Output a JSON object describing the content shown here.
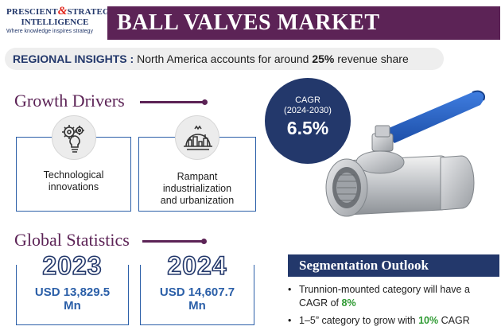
{
  "logo": {
    "line1_a": "PRESCIENT",
    "amp": "&",
    "line1_b": "STRATEGIC",
    "line2": "INTELLIGENCE",
    "tagline": "Where knowledge inspires strategy"
  },
  "title": "BALL VALVES MARKET",
  "regional": {
    "label": "REGIONAL INSIGHTS :",
    "text": "North America accounts for around",
    "percent": "25%",
    "suffix": "revenue share"
  },
  "growth_drivers": {
    "heading": "Growth Drivers",
    "items": [
      {
        "icon": "gears-lightbulb-icon",
        "label_line1": "Technological",
        "label_line2": "innovations"
      },
      {
        "icon": "industrial-city-icon",
        "label_line1": "Rampant",
        "label_line2": "industrialization",
        "label_line3": "and urbanization"
      }
    ]
  },
  "cagr": {
    "label": "CAGR",
    "period": "(2024-2030)",
    "value": "6.5%"
  },
  "global_statistics": {
    "heading": "Global Statistics",
    "items": [
      {
        "year": "2023",
        "value_line1": "USD 13,829.5",
        "value_line2": "Mn"
      },
      {
        "year": "2024",
        "value_line1": "USD 14,607.7",
        "value_line2": "Mn"
      }
    ]
  },
  "segmentation": {
    "heading": "Segmentation Outlook",
    "items": [
      {
        "bullet": "•",
        "text_a": "Trunnion-mounted category will have a CAGR of",
        "highlight": "8%",
        "text_b": ""
      },
      {
        "bullet": "•",
        "text_a": "1–5” category to grow with",
        "highlight": "10%",
        "text_b": "CAGR"
      }
    ]
  },
  "colors": {
    "brand_purple": "#5c2356",
    "brand_navy": "#23386b",
    "card_blue": "#2b5fa8",
    "highlight_green": "#2e9a32"
  },
  "image": {
    "icon": "ball-valve-image"
  }
}
